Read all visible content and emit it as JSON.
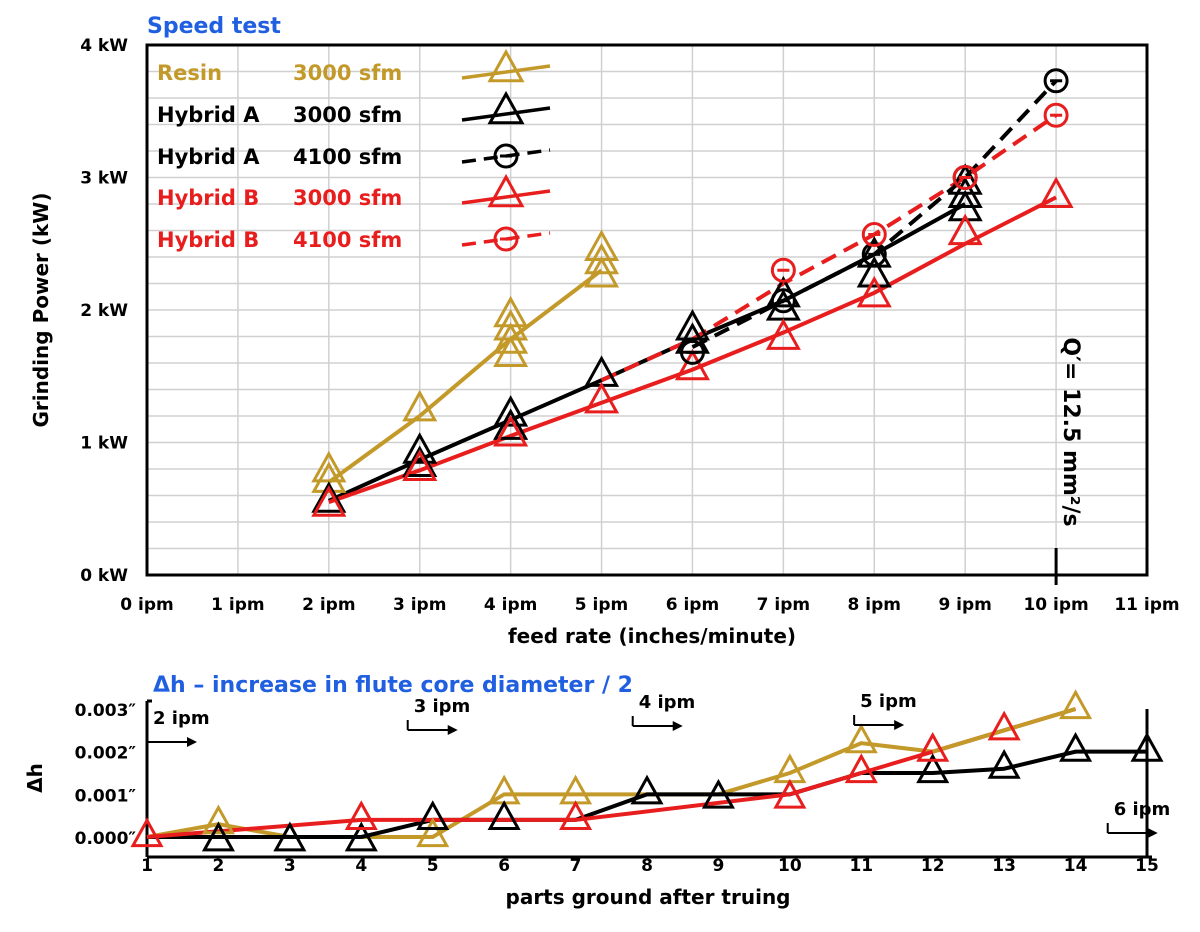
{
  "chart_data": [
    {
      "type": "line",
      "title": "Speed test",
      "xlabel": "feed rate (inches/minute)",
      "ylabel": "Grinding Power (kW)",
      "xlim": [
        0,
        11
      ],
      "ylim": [
        0,
        4
      ],
      "x_ticks": [
        "0 ipm",
        "1 ipm",
        "2 ipm",
        "3 ipm",
        "4 ipm",
        "5 ipm",
        "6 ipm",
        "7 ipm",
        "8 ipm",
        "9 ipm",
        "10 ipm",
        "11 ipm"
      ],
      "y_ticks": [
        "0 kW",
        "1 kW",
        "2 kW",
        "3 kW",
        "4 kW"
      ],
      "grid": true,
      "legend_position": "top-left",
      "series": [
        {
          "name": "Resin",
          "speed": "3000 sfm",
          "color": "#c39a2a",
          "dash": false,
          "marker": "triangle",
          "line_x": [
            2,
            3,
            4,
            5
          ],
          "line_y": [
            0.7,
            1.2,
            1.78,
            2.3
          ],
          "points": [
            [
              2,
              0.78
            ],
            [
              2,
              0.7
            ],
            [
              3,
              1.24
            ],
            [
              4,
              1.95
            ],
            [
              4,
              1.85
            ],
            [
              4,
              1.75
            ],
            [
              4,
              1.65
            ],
            [
              5,
              2.45
            ],
            [
              5,
              2.35
            ],
            [
              5,
              2.25
            ]
          ]
        },
        {
          "name": "Hybrid A",
          "speed": "3000 sfm",
          "color": "#000000",
          "dash": false,
          "marker": "triangle",
          "line_x": [
            2,
            3,
            4,
            5,
            6,
            7,
            8,
            9
          ],
          "line_y": [
            0.56,
            0.87,
            1.17,
            1.47,
            1.78,
            2.07,
            2.42,
            2.8
          ],
          "points": [
            [
              2,
              0.55
            ],
            [
              3,
              0.92
            ],
            [
              3,
              0.82
            ],
            [
              4,
              1.2
            ],
            [
              4,
              1.1
            ],
            [
              5,
              1.5
            ],
            [
              6,
              1.85
            ],
            [
              6,
              1.75
            ],
            [
              7,
              2.1
            ],
            [
              7,
              2.0
            ],
            [
              8,
              2.4
            ],
            [
              8,
              2.25
            ],
            [
              9,
              2.95
            ],
            [
              9,
              2.85
            ],
            [
              9,
              2.75
            ]
          ]
        },
        {
          "name": "Hybrid A",
          "speed": "4100 sfm",
          "color": "#000000",
          "dash": true,
          "marker": "circle",
          "line_x": [
            6,
            7,
            8,
            9,
            10
          ],
          "line_y": [
            1.72,
            2.07,
            2.42,
            3.0,
            3.73
          ],
          "points": [
            [
              6,
              1.68
            ],
            [
              7,
              2.07
            ],
            [
              8,
              2.42
            ],
            [
              9,
              3.0
            ],
            [
              10,
              3.73
            ]
          ]
        },
        {
          "name": "Hybrid B",
          "speed": "3000 sfm",
          "color": "#e81e1e",
          "dash": false,
          "marker": "triangle",
          "line_x": [
            2,
            3,
            4,
            5,
            6,
            7,
            8,
            9,
            10
          ],
          "line_y": [
            0.55,
            0.79,
            1.05,
            1.3,
            1.55,
            1.83,
            2.13,
            2.5,
            2.85
          ],
          "points": [
            [
              2,
              0.52
            ],
            [
              3,
              0.79
            ],
            [
              4,
              1.05
            ],
            [
              5,
              1.3
            ],
            [
              6,
              1.55
            ],
            [
              7,
              1.78
            ],
            [
              8,
              2.1
            ],
            [
              9,
              2.57
            ],
            [
              10,
              2.85
            ]
          ]
        },
        {
          "name": "Hybrid B",
          "speed": "4100 sfm",
          "color": "#e81e1e",
          "dash": true,
          "marker": "circle",
          "line_x": [
            5,
            6,
            7,
            8,
            9,
            10
          ],
          "line_y": [
            1.47,
            1.78,
            2.2,
            2.57,
            3.0,
            3.47
          ],
          "points": [
            [
              7,
              2.3
            ],
            [
              8,
              2.57
            ],
            [
              9,
              3.0
            ],
            [
              10,
              3.47
            ]
          ]
        }
      ],
      "annotation": {
        "text": "Q′= 12.5 mm²/s",
        "x": 10
      }
    },
    {
      "type": "line",
      "title": "Δh – increase in flute core diameter / 2",
      "xlabel": "parts ground after truing",
      "ylabel": "Δh",
      "xlim": [
        1,
        15
      ],
      "ylim": [
        0,
        0.003
      ],
      "x_ticks": [
        "1",
        "2",
        "3",
        "4",
        "5",
        "6",
        "7",
        "8",
        "9",
        "10",
        "11",
        "12",
        "13",
        "14",
        "15"
      ],
      "y_ticks": [
        "0.000″",
        "0.001″",
        "0.002″",
        "0.003″"
      ],
      "series": [
        {
          "name": "Resin",
          "color": "#c39a2a",
          "marker": "triangle",
          "x": [
            1,
            2,
            3,
            4,
            5,
            6,
            7,
            8,
            9,
            10,
            11,
            12
          ],
          "y": [
            0.0,
            0.0003,
            0.0,
            0.0,
            0.0,
            0.001,
            0.001,
            0.001,
            0.001,
            0.0015,
            0.0022,
            0.002
          ],
          "points": [
            [
              2,
              0.0003
            ],
            [
              5,
              0.0
            ],
            [
              6,
              0.001
            ],
            [
              7,
              0.001
            ],
            [
              10,
              0.0015
            ],
            [
              11,
              0.0022
            ],
            [
              14,
              0.003
            ]
          ]
        },
        {
          "name": "Hybrid A",
          "color": "#000000",
          "marker": "triangle",
          "x": [
            1,
            2,
            3,
            4,
            5,
            6,
            7,
            8,
            9,
            10,
            11,
            12,
            13,
            14,
            15
          ],
          "y": [
            0.0,
            0.0,
            0.0,
            0.0,
            0.0004,
            0.0004,
            0.0004,
            0.001,
            0.001,
            0.001,
            0.0015,
            0.0015,
            0.0016,
            0.002,
            0.002
          ],
          "points": [
            [
              2,
              -0.0001
            ],
            [
              3,
              -0.0001
            ],
            [
              4,
              -0.0001
            ],
            [
              5,
              0.0004
            ],
            [
              6,
              0.0004
            ],
            [
              8,
              0.001
            ],
            [
              9,
              0.0009
            ],
            [
              12,
              0.0015
            ],
            [
              13,
              0.0016
            ],
            [
              14,
              0.002
            ],
            [
              15,
              0.002
            ]
          ]
        },
        {
          "name": "Hybrid B",
          "color": "#e81e1e",
          "marker": "triangle",
          "x": [
            1,
            4,
            7,
            10,
            11,
            12,
            13,
            14
          ],
          "y": [
            0.0,
            0.0004,
            0.0004,
            0.001,
            0.0015,
            0.002,
            0.0025,
            0.003
          ],
          "points": [
            [
              1,
              0.0
            ],
            [
              4,
              0.0004
            ],
            [
              7,
              0.0004
            ],
            [
              10,
              0.0009
            ],
            [
              11,
              0.0015
            ],
            [
              12,
              0.002
            ],
            [
              13,
              0.0025
            ]
          ]
        }
      ],
      "resin_tail": {
        "x": [
          12,
          13,
          14
        ],
        "y": [
          0.002,
          0.0025,
          0.003
        ]
      },
      "feed_markers": [
        {
          "label": "2 ipm",
          "part": 1
        },
        {
          "label": "3 ipm",
          "part": 4.65
        },
        {
          "label": "4 ipm",
          "part": 7.8
        },
        {
          "label": "5 ipm",
          "part": 10.9
        },
        {
          "label": "6 ipm",
          "part": 14.45
        }
      ]
    }
  ]
}
